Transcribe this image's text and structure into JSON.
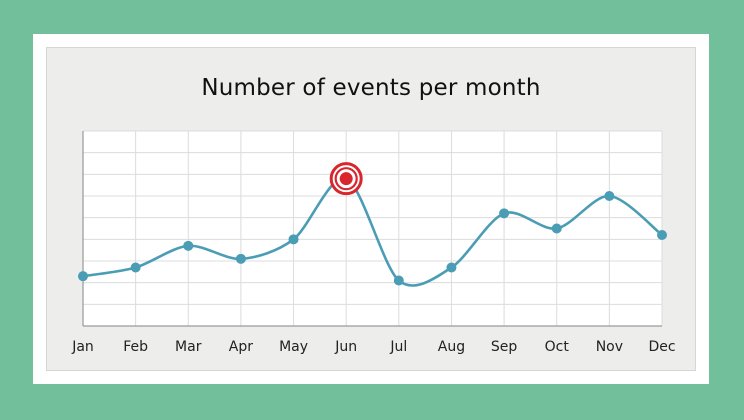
{
  "chart_data": {
    "type": "line",
    "title": "Number of events per month",
    "xlabel": "",
    "ylabel": "",
    "categories": [
      "Jan",
      "Feb",
      "Mar",
      "Apr",
      "May",
      "Jun",
      "Jul",
      "Aug",
      "Sep",
      "Oct",
      "Nov",
      "Dec"
    ],
    "series": [
      {
        "values": [
          2.3,
          2.7,
          3.7,
          3.1,
          4.0,
          6.8,
          2.1,
          2.7,
          5.2,
          4.5,
          6.0,
          4.2
        ]
      }
    ],
    "ylim": [
      0,
      9
    ],
    "grid": true,
    "legend": "none",
    "highlight": {
      "category": "Jun",
      "value": 6.8
    },
    "colors": {
      "background": "#72c09b",
      "line": "#4a9db4",
      "marker": "#4a9db4",
      "highlight": "#d9262c",
      "grid": "#dcdcdc"
    }
  }
}
